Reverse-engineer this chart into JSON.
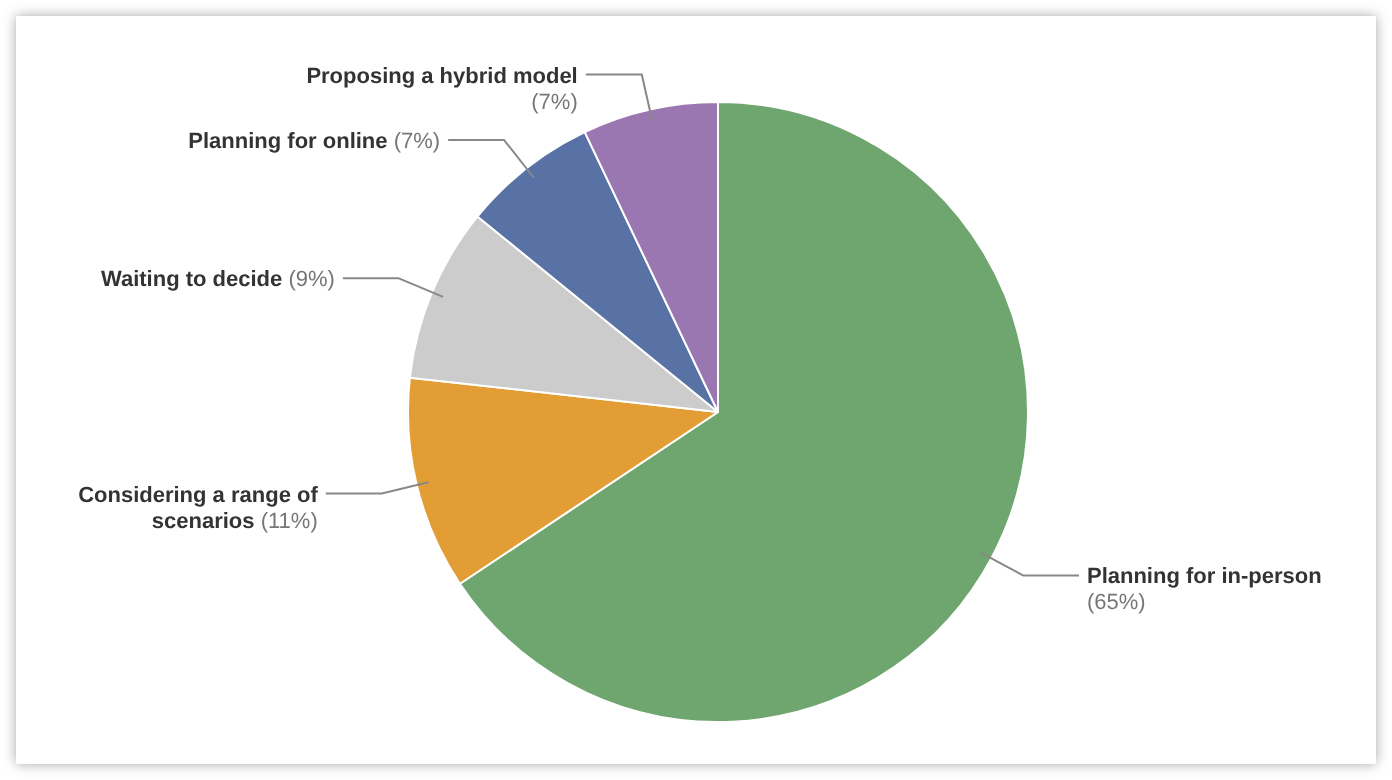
{
  "chart_data": {
    "type": "pie",
    "categories": [
      "Planning for in-person",
      "Considering a range of scenarios",
      "Waiting to decide",
      "Planning for online",
      "Proposing a hybrid model"
    ],
    "values": [
      65,
      11,
      9,
      7,
      7
    ],
    "colors": [
      "#6fa56f",
      "#e39d35",
      "#cccccc",
      "#5872a5",
      "#9a77b0"
    ],
    "value_labels": [
      "(65%)",
      "(11%)",
      "(9%)",
      "(7%)",
      "(7%)"
    ]
  }
}
